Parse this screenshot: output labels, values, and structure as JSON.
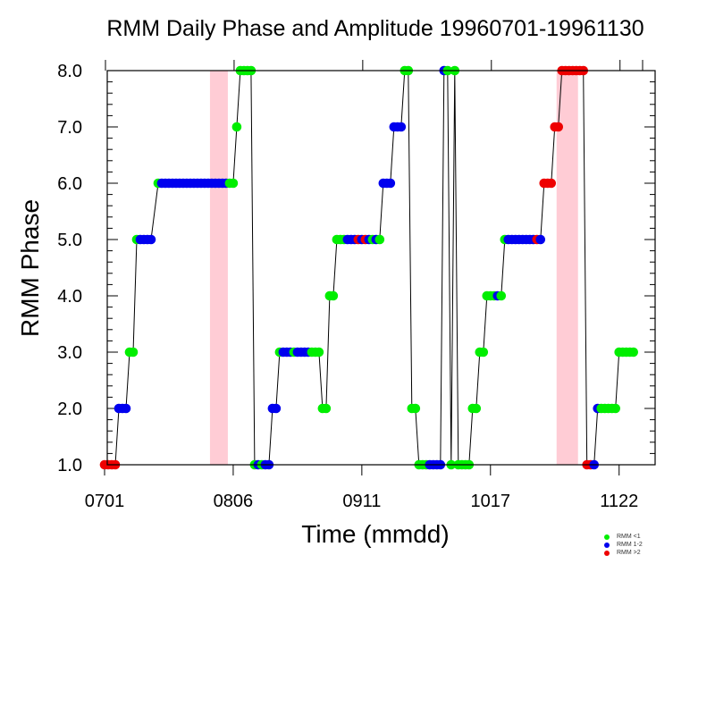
{
  "chart_data": {
    "type": "scatter",
    "title": "RMM Daily Phase and Amplitude 19960701-19961130",
    "xlabel": "Time (mmdd)",
    "ylabel": "RMM Phase",
    "ylim": [
      1,
      8
    ],
    "yticks": [
      "1.0",
      "2.0",
      "3.0",
      "4.0",
      "5.0",
      "6.0",
      "7.0",
      "8.0"
    ],
    "xticks": [
      {
        "day": 0,
        "label": "0701"
      },
      {
        "day": 36,
        "label": "0806"
      },
      {
        "day": 72,
        "label": "0911"
      },
      {
        "day": 108,
        "label": "1017"
      },
      {
        "day": 144,
        "label": "1122"
      }
    ],
    "xlim": [
      0,
      153
    ],
    "shaded_ranges": [
      [
        30,
        34
      ],
      [
        127,
        132
      ]
    ],
    "colors": {
      "lt1": "#00ee00",
      "m12": "#0000ee",
      "gt2": "#ee0000",
      "shade": "#ffccd5",
      "line": "#000000"
    },
    "legend": [
      {
        "key": "lt1",
        "label": "RMM <1"
      },
      {
        "key": "m12",
        "label": "RMM 1-2"
      },
      {
        "key": "gt2",
        "label": "RMM >2"
      }
    ],
    "points": [
      {
        "d": 0,
        "p": 1,
        "c": "gt2"
      },
      {
        "d": 1,
        "p": 1,
        "c": "gt2"
      },
      {
        "d": 2,
        "p": 1,
        "c": "gt2"
      },
      {
        "d": 3,
        "p": 1,
        "c": "gt2"
      },
      {
        "d": 4,
        "p": 2,
        "c": "m12"
      },
      {
        "d": 5,
        "p": 2,
        "c": "m12"
      },
      {
        "d": 6,
        "p": 2,
        "c": "m12"
      },
      {
        "d": 7,
        "p": 3,
        "c": "lt1"
      },
      {
        "d": 8,
        "p": 3,
        "c": "lt1"
      },
      {
        "d": 9,
        "p": 5,
        "c": "lt1"
      },
      {
        "d": 10,
        "p": 5,
        "c": "m12"
      },
      {
        "d": 11,
        "p": 5,
        "c": "m12"
      },
      {
        "d": 12,
        "p": 5,
        "c": "m12"
      },
      {
        "d": 13,
        "p": 5,
        "c": "m12"
      },
      {
        "d": 15,
        "p": 6,
        "c": "lt1"
      },
      {
        "d": 16,
        "p": 6,
        "c": "m12"
      },
      {
        "d": 17,
        "p": 6,
        "c": "m12"
      },
      {
        "d": 18,
        "p": 6,
        "c": "m12"
      },
      {
        "d": 19,
        "p": 6,
        "c": "m12"
      },
      {
        "d": 20,
        "p": 6,
        "c": "m12"
      },
      {
        "d": 21,
        "p": 6,
        "c": "m12"
      },
      {
        "d": 22,
        "p": 6,
        "c": "m12"
      },
      {
        "d": 23,
        "p": 6,
        "c": "m12"
      },
      {
        "d": 24,
        "p": 6,
        "c": "m12"
      },
      {
        "d": 25,
        "p": 6,
        "c": "m12"
      },
      {
        "d": 26,
        "p": 6,
        "c": "m12"
      },
      {
        "d": 27,
        "p": 6,
        "c": "m12"
      },
      {
        "d": 28,
        "p": 6,
        "c": "m12"
      },
      {
        "d": 29,
        "p": 6,
        "c": "m12"
      },
      {
        "d": 30,
        "p": 6,
        "c": "m12"
      },
      {
        "d": 31,
        "p": 6,
        "c": "m12"
      },
      {
        "d": 32,
        "p": 6,
        "c": "m12"
      },
      {
        "d": 33,
        "p": 6,
        "c": "m12"
      },
      {
        "d": 34,
        "p": 6,
        "c": "m12"
      },
      {
        "d": 35,
        "p": 6,
        "c": "lt1"
      },
      {
        "d": 36,
        "p": 6,
        "c": "lt1"
      },
      {
        "d": 37,
        "p": 7,
        "c": "lt1"
      },
      {
        "d": 38,
        "p": 8,
        "c": "lt1"
      },
      {
        "d": 39,
        "p": 8,
        "c": "lt1"
      },
      {
        "d": 40,
        "p": 8,
        "c": "lt1"
      },
      {
        "d": 41,
        "p": 8,
        "c": "lt1"
      },
      {
        "d": 42,
        "p": 1,
        "c": "lt1"
      },
      {
        "d": 43,
        "p": 1,
        "c": "m12"
      },
      {
        "d": 44,
        "p": 1,
        "c": "lt1"
      },
      {
        "d": 45,
        "p": 1,
        "c": "m12"
      },
      {
        "d": 46,
        "p": 1,
        "c": "m12"
      },
      {
        "d": 47,
        "p": 2,
        "c": "m12"
      },
      {
        "d": 48,
        "p": 2,
        "c": "m12"
      },
      {
        "d": 49,
        "p": 3,
        "c": "lt1"
      },
      {
        "d": 50,
        "p": 3,
        "c": "m12"
      },
      {
        "d": 51,
        "p": 3,
        "c": "m12"
      },
      {
        "d": 52,
        "p": 3,
        "c": "m12"
      },
      {
        "d": 53,
        "p": 3,
        "c": "lt1"
      },
      {
        "d": 54,
        "p": 3,
        "c": "m12"
      },
      {
        "d": 55,
        "p": 3,
        "c": "m12"
      },
      {
        "d": 56,
        "p": 3,
        "c": "m12"
      },
      {
        "d": 57,
        "p": 3,
        "c": "m12"
      },
      {
        "d": 58,
        "p": 3,
        "c": "lt1"
      },
      {
        "d": 59,
        "p": 3,
        "c": "lt1"
      },
      {
        "d": 60,
        "p": 3,
        "c": "lt1"
      },
      {
        "d": 61,
        "p": 2,
        "c": "lt1"
      },
      {
        "d": 62,
        "p": 2,
        "c": "lt1"
      },
      {
        "d": 63,
        "p": 4,
        "c": "lt1"
      },
      {
        "d": 64,
        "p": 4,
        "c": "lt1"
      },
      {
        "d": 65,
        "p": 5,
        "c": "lt1"
      },
      {
        "d": 66,
        "p": 5,
        "c": "lt1"
      },
      {
        "d": 67,
        "p": 5,
        "c": "lt1"
      },
      {
        "d": 68,
        "p": 5,
        "c": "m12"
      },
      {
        "d": 69,
        "p": 5,
        "c": "m12"
      },
      {
        "d": 70,
        "p": 5,
        "c": "m12"
      },
      {
        "d": 71,
        "p": 5,
        "c": "gt2"
      },
      {
        "d": 72,
        "p": 5,
        "c": "m12"
      },
      {
        "d": 73,
        "p": 5,
        "c": "gt2"
      },
      {
        "d": 74,
        "p": 5,
        "c": "m12"
      },
      {
        "d": 75,
        "p": 5,
        "c": "lt1"
      },
      {
        "d": 76,
        "p": 5,
        "c": "m12"
      },
      {
        "d": 77,
        "p": 5,
        "c": "lt1"
      },
      {
        "d": 78,
        "p": 6,
        "c": "m12"
      },
      {
        "d": 79,
        "p": 6,
        "c": "m12"
      },
      {
        "d": 80,
        "p": 6,
        "c": "m12"
      },
      {
        "d": 81,
        "p": 7,
        "c": "m12"
      },
      {
        "d": 82,
        "p": 7,
        "c": "m12"
      },
      {
        "d": 83,
        "p": 7,
        "c": "m12"
      },
      {
        "d": 84,
        "p": 8,
        "c": "lt1"
      },
      {
        "d": 85,
        "p": 8,
        "c": "lt1"
      },
      {
        "d": 86,
        "p": 2,
        "c": "lt1"
      },
      {
        "d": 87,
        "p": 2,
        "c": "lt1"
      },
      {
        "d": 88,
        "p": 1,
        "c": "lt1"
      },
      {
        "d": 89,
        "p": 1,
        "c": "lt1"
      },
      {
        "d": 90,
        "p": 1,
        "c": "lt1"
      },
      {
        "d": 91,
        "p": 1,
        "c": "m12"
      },
      {
        "d": 92,
        "p": 1,
        "c": "m12"
      },
      {
        "d": 93,
        "p": 1,
        "c": "m12"
      },
      {
        "d": 94,
        "p": 1,
        "c": "m12"
      },
      {
        "d": 95,
        "p": 8,
        "c": "m12"
      },
      {
        "d": 96,
        "p": 8,
        "c": "lt1"
      },
      {
        "d": 97,
        "p": 1,
        "c": "lt1"
      },
      {
        "d": 98,
        "p": 8,
        "c": "lt1"
      },
      {
        "d": 99,
        "p": 1,
        "c": "lt1"
      },
      {
        "d": 100,
        "p": 1,
        "c": "lt1"
      },
      {
        "d": 101,
        "p": 1,
        "c": "lt1"
      },
      {
        "d": 102,
        "p": 1,
        "c": "lt1"
      },
      {
        "d": 103,
        "p": 2,
        "c": "lt1"
      },
      {
        "d": 104,
        "p": 2,
        "c": "lt1"
      },
      {
        "d": 105,
        "p": 3,
        "c": "lt1"
      },
      {
        "d": 106,
        "p": 3,
        "c": "lt1"
      },
      {
        "d": 107,
        "p": 4,
        "c": "lt1"
      },
      {
        "d": 108,
        "p": 4,
        "c": "lt1"
      },
      {
        "d": 109,
        "p": 4,
        "c": "lt1"
      },
      {
        "d": 110,
        "p": 4,
        "c": "m12"
      },
      {
        "d": 111,
        "p": 4,
        "c": "lt1"
      },
      {
        "d": 112,
        "p": 5,
        "c": "lt1"
      },
      {
        "d": 113,
        "p": 5,
        "c": "m12"
      },
      {
        "d": 114,
        "p": 5,
        "c": "m12"
      },
      {
        "d": 115,
        "p": 5,
        "c": "m12"
      },
      {
        "d": 116,
        "p": 5,
        "c": "m12"
      },
      {
        "d": 117,
        "p": 5,
        "c": "m12"
      },
      {
        "d": 118,
        "p": 5,
        "c": "m12"
      },
      {
        "d": 119,
        "p": 5,
        "c": "m12"
      },
      {
        "d": 120,
        "p": 5,
        "c": "m12"
      },
      {
        "d": 121,
        "p": 5,
        "c": "gt2"
      },
      {
        "d": 122,
        "p": 5,
        "c": "m12"
      },
      {
        "d": 123,
        "p": 6,
        "c": "gt2"
      },
      {
        "d": 124,
        "p": 6,
        "c": "gt2"
      },
      {
        "d": 125,
        "p": 6,
        "c": "gt2"
      },
      {
        "d": 126,
        "p": 7,
        "c": "gt2"
      },
      {
        "d": 127,
        "p": 7,
        "c": "gt2"
      },
      {
        "d": 128,
        "p": 8,
        "c": "gt2"
      },
      {
        "d": 129,
        "p": 8,
        "c": "gt2"
      },
      {
        "d": 130,
        "p": 8,
        "c": "gt2"
      },
      {
        "d": 131,
        "p": 8,
        "c": "gt2"
      },
      {
        "d": 132,
        "p": 8,
        "c": "gt2"
      },
      {
        "d": 133,
        "p": 8,
        "c": "gt2"
      },
      {
        "d": 134,
        "p": 8,
        "c": "gt2"
      },
      {
        "d": 135,
        "p": 1,
        "c": "gt2"
      },
      {
        "d": 136,
        "p": 1,
        "c": "gt2"
      },
      {
        "d": 137,
        "p": 1,
        "c": "m12"
      },
      {
        "d": 138,
        "p": 2,
        "c": "m12"
      },
      {
        "d": 139,
        "p": 2,
        "c": "lt1"
      },
      {
        "d": 140,
        "p": 2,
        "c": "lt1"
      },
      {
        "d": 141,
        "p": 2,
        "c": "lt1"
      },
      {
        "d": 142,
        "p": 2,
        "c": "lt1"
      },
      {
        "d": 143,
        "p": 2,
        "c": "lt1"
      },
      {
        "d": 144,
        "p": 3,
        "c": "lt1"
      },
      {
        "d": 145,
        "p": 3,
        "c": "lt1"
      },
      {
        "d": 146,
        "p": 3,
        "c": "lt1"
      },
      {
        "d": 147,
        "p": 3,
        "c": "lt1"
      },
      {
        "d": 148,
        "p": 3,
        "c": "lt1"
      }
    ]
  }
}
